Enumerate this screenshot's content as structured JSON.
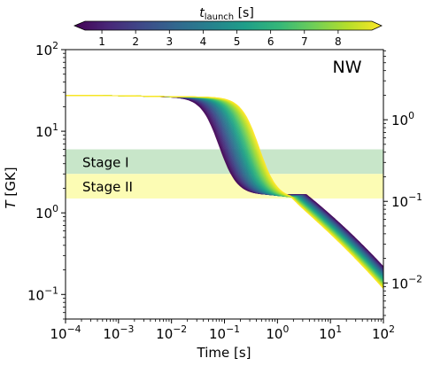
{
  "chart_data": {
    "type": "line",
    "panel_label": "NW",
    "xlabel": "Time [s]",
    "ylabel_italic": "T",
    "ylabel_unit": " [GK]",
    "xscale": "log",
    "yscale": "log",
    "xlim": [
      0.0001,
      100
    ],
    "ylim": [
      0.05,
      100
    ],
    "x_ticks": [
      {
        "value": 0.0001,
        "base": "10",
        "exp": "−4"
      },
      {
        "value": 0.001,
        "base": "10",
        "exp": "−3"
      },
      {
        "value": 0.01,
        "base": "10",
        "exp": "−2"
      },
      {
        "value": 0.1,
        "base": "10",
        "exp": "−1"
      },
      {
        "value": 1,
        "base": "10",
        "exp": "0"
      },
      {
        "value": 10,
        "base": "10",
        "exp": "1"
      },
      {
        "value": 100,
        "base": "10",
        "exp": "2"
      }
    ],
    "y_ticks": [
      {
        "value": 0.1,
        "base": "10",
        "exp": "−1"
      },
      {
        "value": 1,
        "base": "10",
        "exp": "0"
      },
      {
        "value": 10,
        "base": "10",
        "exp": "1"
      },
      {
        "value": 100,
        "base": "10",
        "exp": "2"
      }
    ],
    "right_axis": {
      "ticks": [
        {
          "y_left_value": 0.1383,
          "base": "10",
          "exp": "−2"
        },
        {
          "y_left_value": 1.383,
          "base": "10",
          "exp": "−1"
        },
        {
          "y_left_value": 13.83,
          "base": "10",
          "exp": "0"
        }
      ]
    },
    "bands": [
      {
        "label": "Stage I",
        "y_range": [
          3.0,
          6.0
        ],
        "color": "#c8e6c9"
      },
      {
        "label": "Stage II",
        "y_range": [
          1.5,
          3.0
        ],
        "color": "#fcfcb4"
      }
    ],
    "colorbar": {
      "label_italic": "t",
      "label_sub": "launch",
      "label_unit": " [s]",
      "ticks": [
        "1",
        "2",
        "3",
        "4",
        "5",
        "6",
        "7",
        "8"
      ],
      "range": [
        0.5,
        9.0
      ],
      "colormap": "viridis",
      "colormap_stops": [
        "#440154",
        "#482878",
        "#3e4a89",
        "#31688e",
        "#26828e",
        "#1f9e89",
        "#35b779",
        "#6ece58",
        "#b5de2b",
        "#fde725"
      ]
    },
    "series_count": 60,
    "series_shape": {
      "initial_T": 27.5,
      "first_drop_t_range": [
        0.08,
        0.45
      ],
      "plateau_T_range": [
        1.55,
        1.75
      ],
      "plateau_t_range": [
        0.9,
        3.5
      ],
      "final_T_at_100s": 0.16
    }
  }
}
